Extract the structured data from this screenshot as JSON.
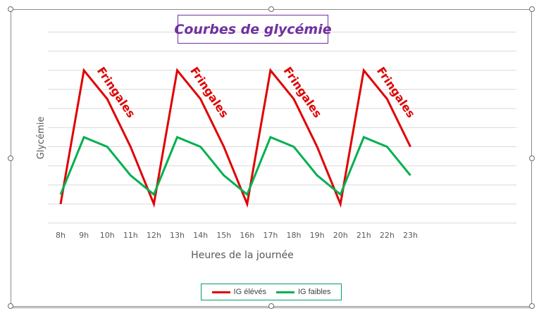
{
  "chart_data": {
    "type": "line",
    "title": "Courbes de glycémie",
    "xlabel": "Heures de la journée",
    "ylabel": "Glycémie",
    "categories": [
      "8h",
      "9h",
      "10h",
      "11h",
      "12h",
      "13h",
      "14h",
      "15h",
      "16h",
      "17h",
      "18h",
      "19h",
      "20h",
      "21h",
      "22h",
      "23h"
    ],
    "ylim": [
      0,
      9
    ],
    "grid": true,
    "legend_position": "bottom",
    "series": [
      {
        "name": "IG élévés",
        "color": "#e00000",
        "values": [
          0,
          7,
          5.5,
          3,
          0,
          7,
          5.5,
          3,
          0,
          7,
          5.5,
          3,
          0,
          7,
          5.5,
          3
        ]
      },
      {
        "name": "IG faibles",
        "color": "#00b050",
        "values": [
          0.5,
          3.5,
          3,
          1.5,
          0.5,
          3.5,
          3,
          1.5,
          0.5,
          3.5,
          3,
          1.5,
          0.5,
          3.5,
          3,
          1.5
        ]
      }
    ],
    "annotations": [
      {
        "text": "Fringales",
        "x": "9h"
      },
      {
        "text": "Fringales",
        "x": "13h"
      },
      {
        "text": "Fringales",
        "x": "17h"
      },
      {
        "text": "Fringales",
        "x": "21h"
      }
    ]
  }
}
